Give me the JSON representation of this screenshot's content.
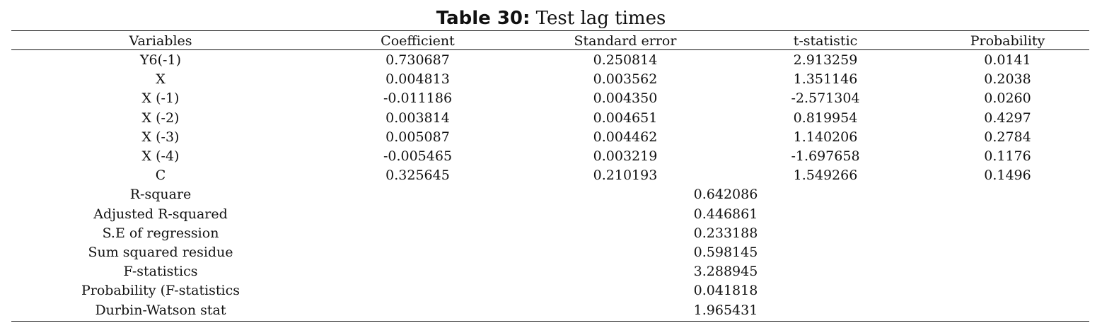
{
  "caption": {
    "label": "Table 30:",
    "title": "Test lag times"
  },
  "headers": [
    "Variables",
    "Coefficient",
    "Standard error",
    "t-statistic",
    "Probability"
  ],
  "rows": [
    [
      "Y6(-1)",
      "0.730687",
      "0.250814",
      "2.913259",
      "0.0141"
    ],
    [
      "X",
      "0.004813",
      "0.003562",
      "1.351146",
      "0.2038"
    ],
    [
      "X (-1)",
      "-0.011186",
      "0.004350",
      "-2.571304",
      "0.0260"
    ],
    [
      "X (-2)",
      "0.003814",
      "0.004651",
      "0.819954",
      "0.4297"
    ],
    [
      "X (-3)",
      "0.005087",
      "0.004462",
      "1.140206",
      "0.2784"
    ],
    [
      "X (-4)",
      "-0.005465",
      "0.003219",
      "-1.697658",
      "0.1176"
    ],
    [
      "C",
      "0.325645",
      "0.210193",
      "1.549266",
      "0.1496"
    ]
  ],
  "stats": [
    {
      "label": "R-square",
      "value": "0.642086"
    },
    {
      "label": "Adjusted R-squared",
      "value": "0.446861"
    },
    {
      "label": "S.E of regression",
      "value": "0.233188"
    },
    {
      "label": "Sum squared residue",
      "value": "0.598145"
    },
    {
      "label": "F-statistics",
      "value": "3.288945"
    },
    {
      "label": "Probability (F-statistics",
      "value": "0.041818"
    },
    {
      "label": "Durbin-Watson stat",
      "value": "1.965431"
    }
  ]
}
